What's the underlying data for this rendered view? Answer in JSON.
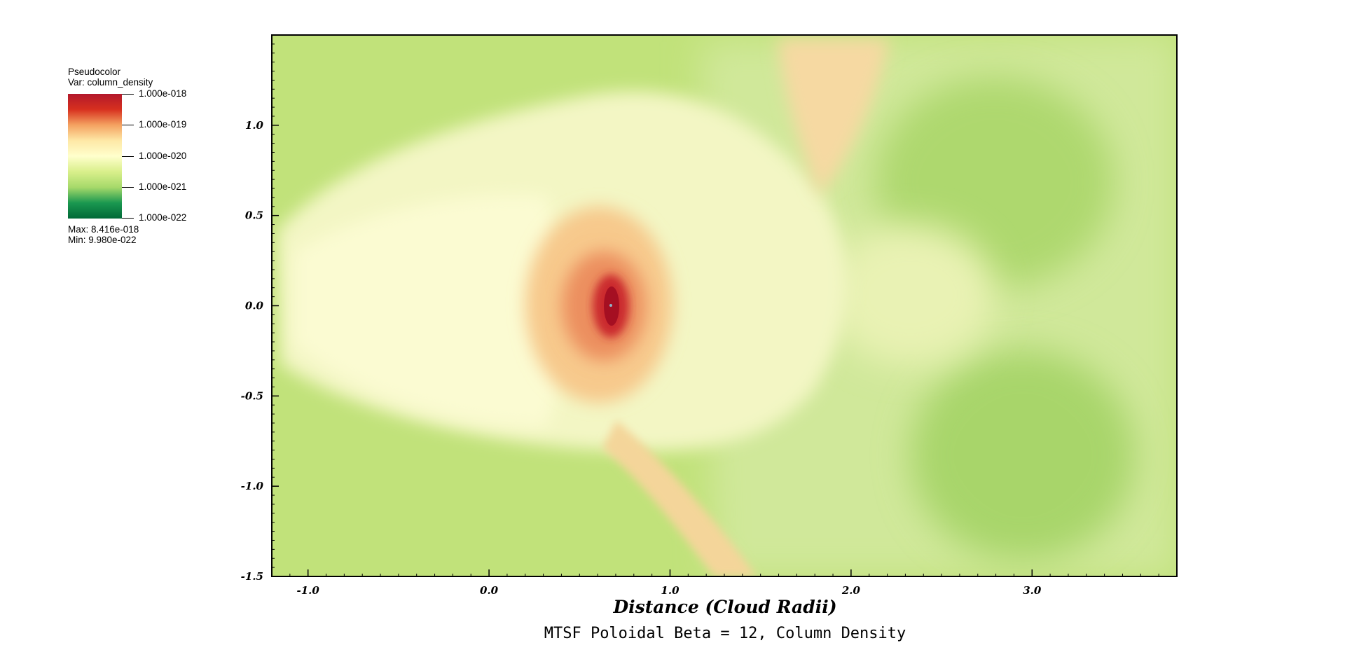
{
  "legend": {
    "title": "Pseudocolor",
    "var_label": "Var: column_density",
    "ticks": [
      "1.000e-018",
      "1.000e-019",
      "1.000e-020",
      "1.000e-021",
      "1.000e-022"
    ],
    "max_label": "Max:  8.416e-018",
    "min_label": "Min:  9.980e-022",
    "colors": [
      "#b2182b",
      "#d7301f",
      "#f4a261",
      "#fee8a6",
      "#ffffcc",
      "#d9ef8b",
      "#a6d96a",
      "#1a9850",
      "#006837"
    ]
  },
  "chart_data": {
    "type": "heatmap",
    "title": "MTSF Poloidal Beta = 12, Column Density",
    "xlabel": "Distance (Cloud Radii)",
    "ylabel": "",
    "xlim": [
      -1.2,
      3.8
    ],
    "ylim": [
      -1.5,
      1.5
    ],
    "xticks": [
      -1.0,
      0.0,
      1.0,
      2.0,
      3.0
    ],
    "xtick_labels": [
      "-1.0",
      "0.0",
      "1.0",
      "2.0",
      "3.0"
    ],
    "yticks": [
      1.0,
      0.5,
      0.0,
      -0.5,
      -1.0,
      -1.5
    ],
    "ytick_labels": [
      "1.0",
      "0.5",
      "0.0",
      "-0.5",
      "-1.0",
      "-1.5"
    ],
    "variable": "column_density",
    "colorbar_range": [
      "1.000e-022",
      "1.000e-018"
    ],
    "max": "8.416e-018",
    "min": "9.980e-022",
    "peak_location": [
      0.67,
      0.0
    ]
  }
}
